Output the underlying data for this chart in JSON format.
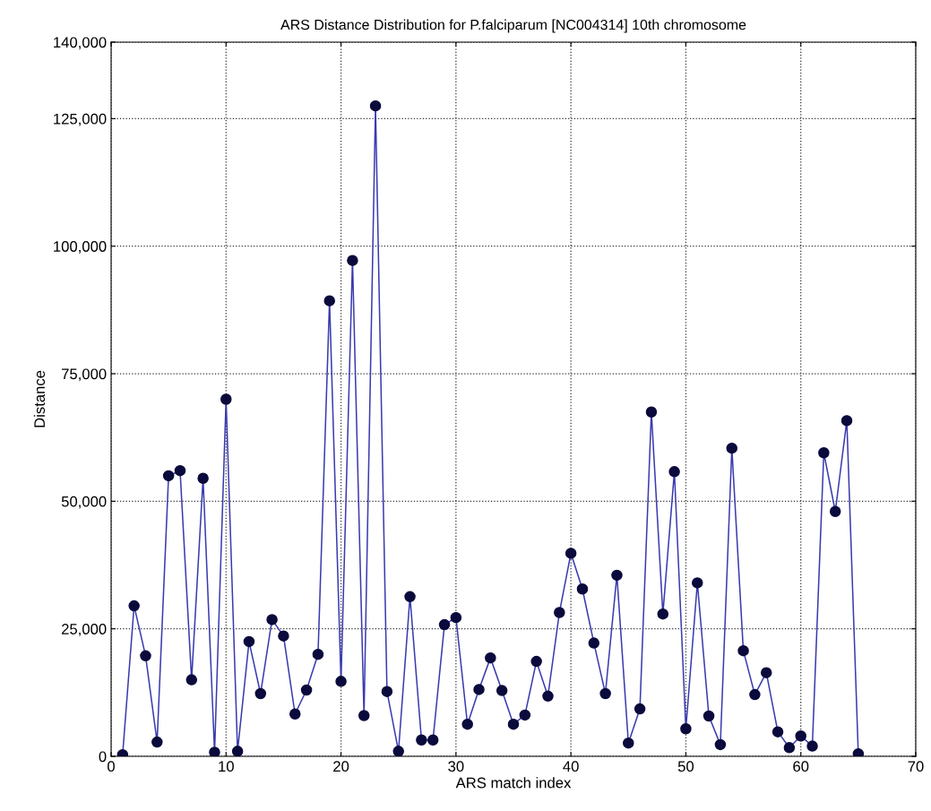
{
  "chart_data": {
    "type": "line",
    "title": "ARS Distance Distribution for P.falciparum [NC004314] 10th chromosome",
    "xlabel": "ARS match index",
    "ylabel": "Distance",
    "x": [
      1,
      2,
      3,
      4,
      5,
      6,
      7,
      8,
      9,
      10,
      11,
      12,
      13,
      14,
      15,
      16,
      17,
      18,
      19,
      20,
      21,
      22,
      23,
      24,
      25,
      26,
      27,
      28,
      29,
      30,
      31,
      32,
      33,
      34,
      35,
      36,
      37,
      38,
      39,
      40,
      41,
      42,
      43,
      44,
      45,
      46,
      47,
      48,
      49,
      50,
      51,
      52,
      53,
      54,
      55,
      56,
      57,
      58,
      59,
      60,
      61,
      62,
      63,
      64,
      65
    ],
    "series": [
      {
        "color": "#3a3ab0",
        "values": [
          300,
          29500,
          19700,
          2800,
          55000,
          56000,
          15000,
          54500,
          800,
          70000,
          1000,
          22500,
          12300,
          26800,
          23600,
          8300,
          13000,
          20000,
          89300,
          14700,
          97200,
          8000,
          127500,
          12700,
          1000,
          31300,
          3200,
          3200,
          25800,
          27200,
          6300,
          13100,
          19300,
          12900,
          6300,
          8100,
          18600,
          11800,
          28200,
          39800,
          32800,
          22200,
          12300,
          35500,
          2600,
          9300,
          67500,
          27900,
          55800,
          5400,
          34000,
          7900,
          2300,
          60400,
          20700,
          12100,
          16400,
          4800,
          1700,
          4000,
          2000,
          59500,
          48000,
          65800,
          500
        ]
      }
    ],
    "marker": "circle",
    "line_style": "solid",
    "grid": true,
    "xlim": [
      0,
      70
    ],
    "xticks": [
      0,
      10,
      20,
      30,
      40,
      50,
      60,
      70
    ],
    "ylim": [
      0,
      140000
    ],
    "yticks": [
      0,
      {
        "value": 25000,
        "label": "25,000"
      },
      {
        "value": 50000,
        "label": "50,000"
      },
      {
        "value": 75000,
        "label": "75,000"
      },
      {
        "value": 100000,
        "label": "100,000"
      },
      {
        "value": 125000,
        "label": "125,000"
      },
      {
        "value": 140000,
        "label": "140,000"
      }
    ]
  }
}
